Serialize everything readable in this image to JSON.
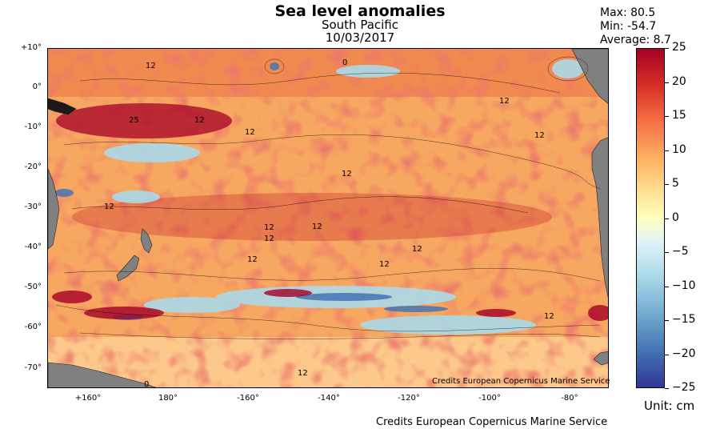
{
  "title": "Sea level anomalies",
  "region": "South Pacific",
  "date": "10/03/2017",
  "stats": {
    "max": "Max: 80.5",
    "min": "Min: -54.7",
    "average": "Average: 8.7"
  },
  "y_axis": [
    "+10°",
    "0°",
    "-10°",
    "-20°",
    "-30°",
    "-40°",
    "-50°",
    "-60°",
    "-70°"
  ],
  "x_axis": [
    "+160°",
    "180°",
    "-160°",
    "-140°",
    "-120°",
    "-100°",
    "-80°"
  ],
  "colorbar": {
    "ticks": [
      "25",
      "20",
      "15",
      "10",
      "5",
      "0",
      "−5",
      "−10",
      "−15",
      "−20",
      "−25"
    ],
    "range": [
      -25,
      25
    ],
    "colormap": "RdYlBu_r",
    "unit_label": "Unit: cm"
  },
  "contour_labels": [
    "12",
    "0",
    "12",
    "25",
    "12",
    "12",
    "12",
    "12",
    "12",
    "12",
    "12",
    "12",
    "12",
    "12",
    "12",
    "12",
    "0",
    "12"
  ],
  "credits": "Credits European Copernicus Marine Service",
  "map_credits": "Credits European Copernicus Marine Service",
  "colors": {
    "land": "#808080",
    "ocean_base": "#f7a860",
    "warm": "#d73027",
    "cool": "#74add1"
  }
}
